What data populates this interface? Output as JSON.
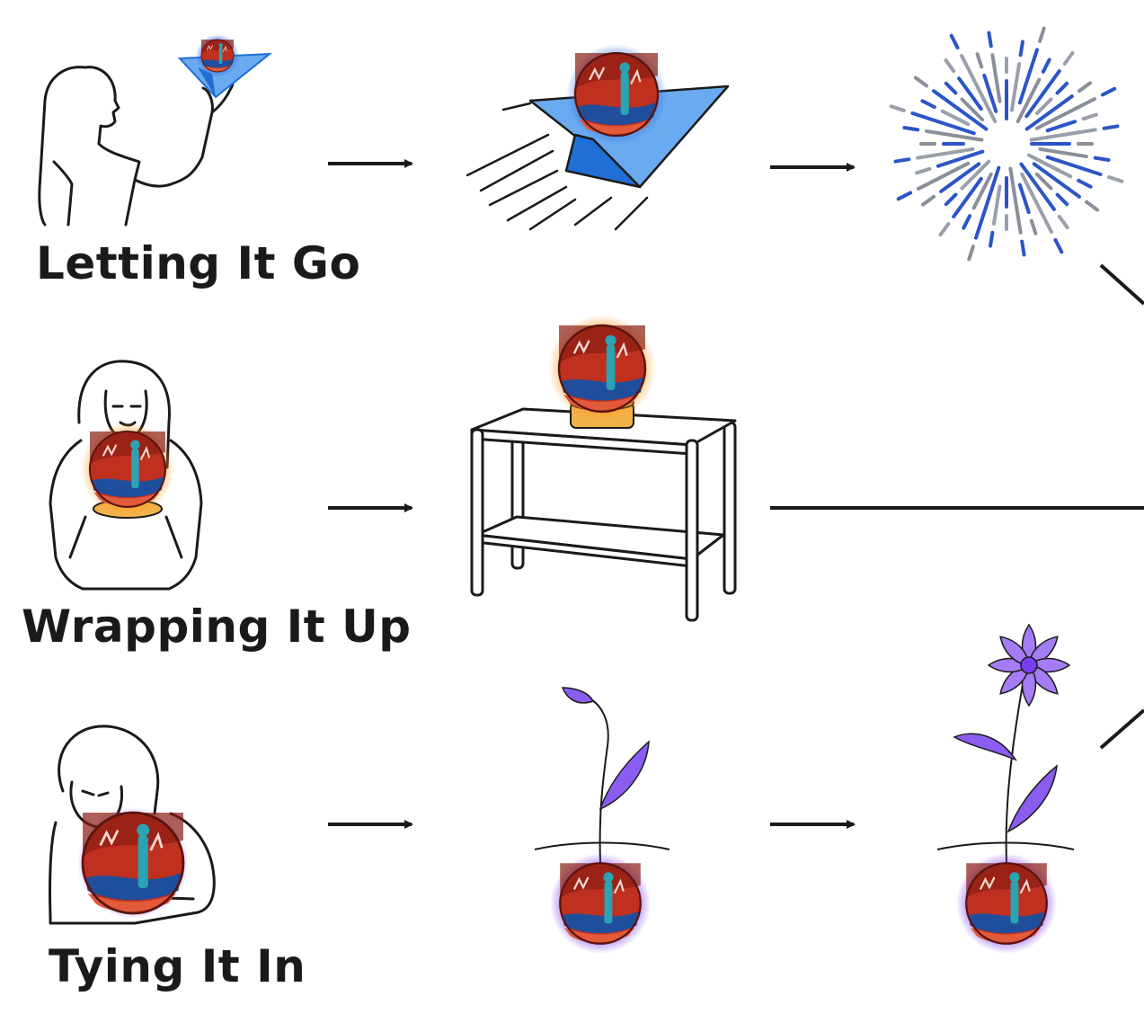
{
  "rows": [
    {
      "label": "Letting It Go"
    },
    {
      "label": "Wrapping It Up"
    },
    {
      "label": "Tying It In"
    }
  ],
  "colors": {
    "line": "#1a1a1a",
    "blue_glow": "#3b6fe0",
    "blue_paper": "#6aaaf0",
    "blue_paper_dark": "#1f6fd6",
    "orange_glow": "#ff9a1f",
    "stand_gold": "#f2b24a",
    "purple_glow": "#7a3cf0",
    "leaf_purple": "#8a5cf0",
    "orb_red": "#c0301e",
    "orb_dark": "#8a1d14",
    "orb_teal": "#2aa3b3"
  },
  "icons": {
    "row1": [
      "person-throwing-paper-plane-icon",
      "paper-plane-icon",
      "burst-icon"
    ],
    "row2": [
      "person-holding-orb-icon",
      "shelf-with-orb-icon"
    ],
    "row3": [
      "person-hugging-orb-icon",
      "sprout-icon",
      "flower-icon"
    ]
  }
}
